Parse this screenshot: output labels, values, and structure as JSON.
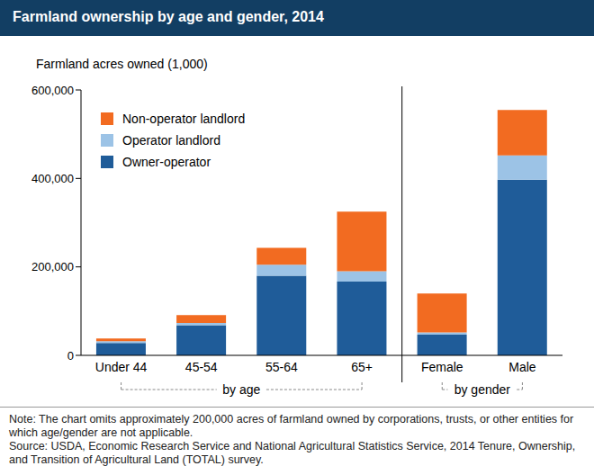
{
  "chart_data": {
    "type": "bar",
    "title": "Farmland ownership by age and gender, 2014",
    "y_label": "Farmland acres owned (1,000)",
    "categories": [
      "Under 44",
      "45-54",
      "55-64",
      "65+",
      "Female",
      "Male"
    ],
    "series": [
      {
        "name": "Owner-operator",
        "color": "#1f5c99",
        "values": [
          28000,
          68000,
          180000,
          167000,
          47000,
          397000
        ]
      },
      {
        "name": "Operator landlord",
        "color": "#9cc3e6",
        "values": [
          4000,
          5000,
          25000,
          23000,
          5000,
          55000
        ]
      },
      {
        "name": "Non-operator landlord",
        "color": "#f26b21",
        "values": [
          6000,
          18000,
          38000,
          135000,
          88000,
          103000
        ]
      }
    ],
    "stacked": true,
    "ylim": [
      0,
      600000
    ],
    "yticks": [
      0,
      {
        "value": 200000,
        "label": "200,000"
      },
      {
        "value": 400000,
        "label": "400,000"
      },
      {
        "value": 600000,
        "label": "600,000"
      }
    ],
    "grid": false,
    "legend": "upper left",
    "groups": [
      {
        "label": "by age",
        "categories": [
          "Under 44",
          "45-54",
          "55-64",
          "65+"
        ]
      },
      {
        "label": "by gender",
        "categories": [
          "Female",
          "Male"
        ]
      }
    ],
    "notes": [
      "Note: The chart omits approximately 200,000 acres of farmland owned by corporations, trusts, or other entities for which age/gender are not applicable.",
      "Source: USDA, Economic Research Service and National Agricultural Statistics Service, 2014 Tenure, Ownership, and Transition of Agricultural Land (TOTAL) survey."
    ]
  }
}
